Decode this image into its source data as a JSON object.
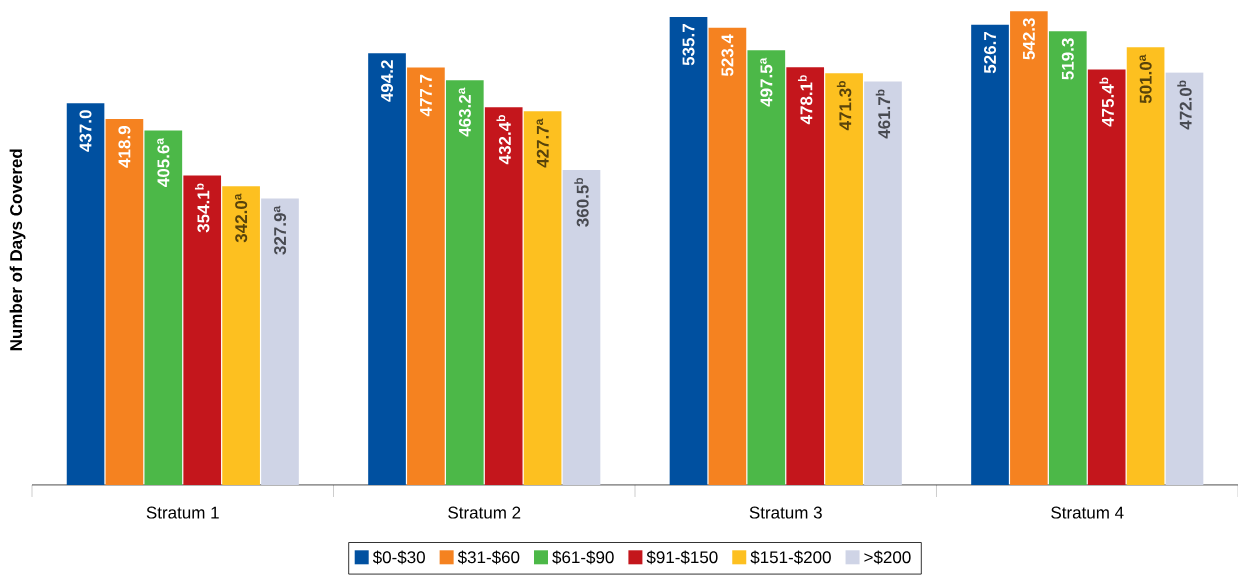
{
  "chart_data": {
    "type": "bar",
    "ylabel": "Number of Days Covered",
    "categories": [
      "Stratum 1",
      "Stratum 2",
      "Stratum 3",
      "Stratum 4"
    ],
    "series": [
      {
        "name": "$0-$30",
        "color": "#0050a0",
        "values": [
          437.0,
          494.2,
          535.7,
          526.7
        ],
        "value_labels": [
          "437.0",
          "494.2",
          "535.7",
          "526.7"
        ]
      },
      {
        "name": "$31-$60",
        "color": "#f58220",
        "values": [
          418.9,
          477.7,
          523.4,
          542.3
        ],
        "value_labels": [
          "418.9",
          "477.7",
          "523.4",
          "542.3"
        ]
      },
      {
        "name": "$61-$90",
        "color": "#4cb848",
        "values": [
          405.6,
          463.2,
          497.5,
          519.3
        ],
        "value_labels": [
          "405.6$^{a}$",
          "463.2$^{a}$",
          "497.5$^{a}$",
          "519.3"
        ]
      },
      {
        "name": "$91-$150",
        "color": "#c4161c",
        "values": [
          354.1,
          432.4,
          478.1,
          475.4
        ],
        "value_labels": [
          "354.1$^{b}$",
          "432.4$^{b}$",
          "478.1$^{b}$",
          "475.4$^{b}$"
        ]
      },
      {
        "name": "$151-$200",
        "color": "#fdc020",
        "values": [
          342.0,
          427.7,
          471.3,
          501.0
        ],
        "value_labels": [
          "342.0$^{a}$",
          "427.7$^{a}$",
          "471.3$^{b}$",
          "501.0$^{a}$"
        ]
      },
      {
        "name": ">$200",
        "color": "#cfd4e6",
        "values": [
          327.9,
          360.5,
          461.7,
          472.0
        ],
        "value_labels": [
          "327.9$^{a}$",
          "360.5$^{b}$",
          "461.7$^{b}$",
          "472.0$^{b}$"
        ]
      }
    ],
    "legend": "bottom"
  }
}
